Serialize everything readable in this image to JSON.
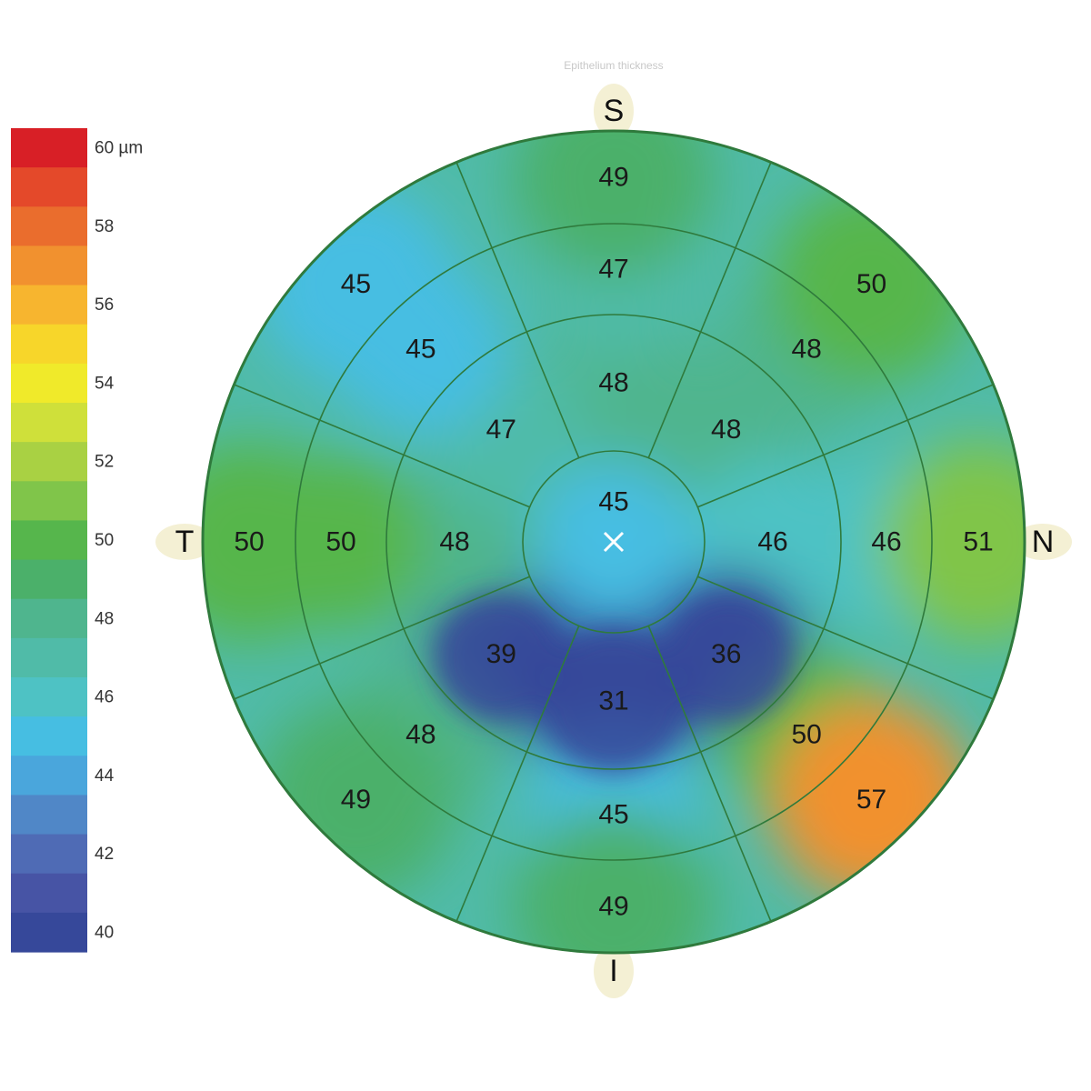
{
  "header": {
    "faint_caption": "Epithelium thickness"
  },
  "chart_data": {
    "type": "heatmap",
    "subtype": "polar-sector-map",
    "unit": "µm",
    "scale": {
      "min": 40,
      "max": 60,
      "tick_labels": [
        "60 µm",
        "58",
        "56",
        "54",
        "52",
        "50",
        "48",
        "46",
        "44",
        "42",
        "40"
      ],
      "colors": [
        "#d81f26",
        "#e4492a",
        "#ea6d2d",
        "#f1912f",
        "#f7b52f",
        "#f7d62a",
        "#f0ea2a",
        "#cfe03a",
        "#a9d143",
        "#80c54a",
        "#56b64c",
        "#4bb06a",
        "#4fb58e",
        "#50bba8",
        "#4ec2c4",
        "#46bee2",
        "#4aa6dc",
        "#5087c7",
        "#4f6bb5",
        "#4754a5",
        "#36489a"
      ]
    },
    "orientation": {
      "superior": "S",
      "inferior": "I",
      "temporal": "T",
      "nasal": "N"
    },
    "center_marker": "×",
    "zones": {
      "center": [
        45
      ],
      "ring1": [
        48,
        48,
        46,
        36,
        31,
        39,
        48,
        47
      ],
      "ring2": [
        47,
        48,
        46,
        50,
        45,
        48,
        50,
        45
      ],
      "ring3": [
        49,
        50,
        51,
        57,
        49,
        49,
        50,
        45
      ]
    },
    "zone_order": "clockwise from superior: S, SN, N, IN, I, IT, T, ST",
    "grid": true,
    "legend_position": "left"
  }
}
